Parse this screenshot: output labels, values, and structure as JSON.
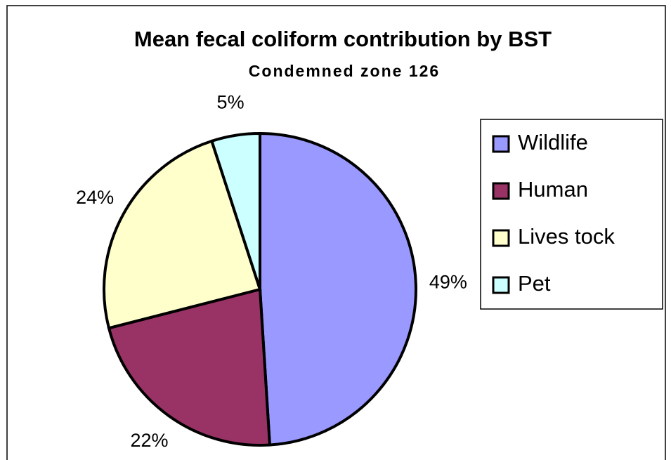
{
  "chart_data": {
    "type": "pie",
    "title": "Mean fecal coliform contribution by BST",
    "subtitle": "Condemned zone 126",
    "categories": [
      "Wildlife",
      "Human",
      "Lives tock",
      "Pet"
    ],
    "values": [
      49,
      22,
      24,
      5
    ],
    "value_labels": [
      "49%",
      "22%",
      "24%",
      "5%"
    ],
    "colors": [
      "#9999ff",
      "#993366",
      "#ffffcc",
      "#ccffff"
    ],
    "legend": "right"
  }
}
